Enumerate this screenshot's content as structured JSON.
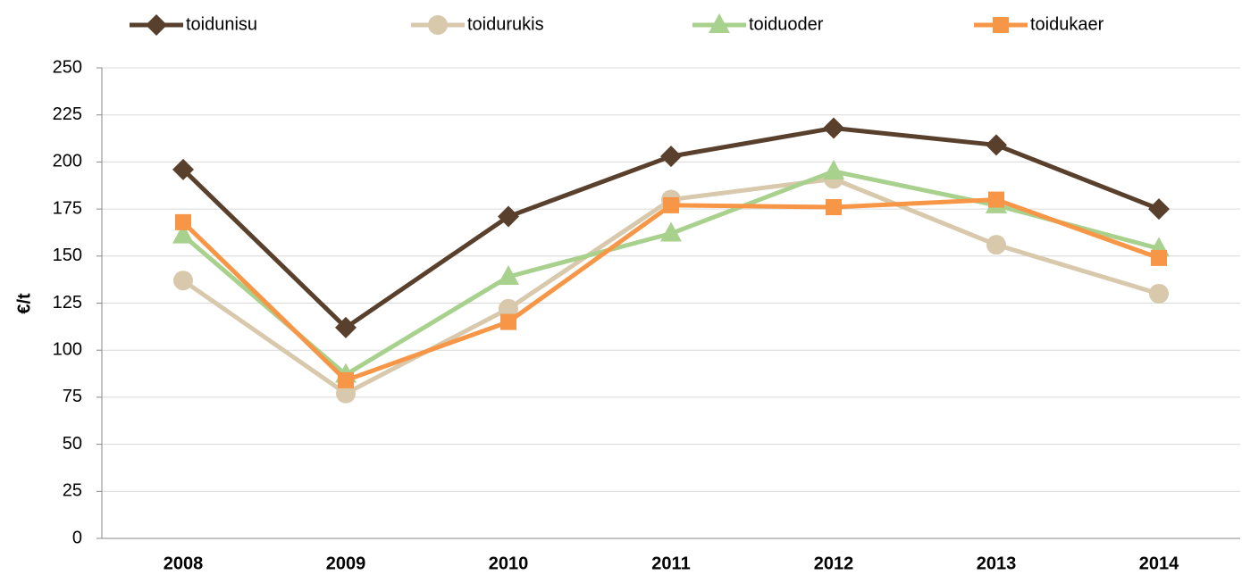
{
  "chart_data": {
    "type": "line",
    "categories": [
      "2008",
      "2009",
      "2010",
      "2011",
      "2012",
      "2013",
      "2014"
    ],
    "y_label": "€/t",
    "ylim": [
      0,
      250
    ],
    "yticks": [
      0,
      25,
      50,
      75,
      100,
      125,
      150,
      175,
      200,
      225,
      250
    ],
    "grid": true,
    "legend": "top",
    "series": [
      {
        "name": "toidunisu",
        "color": "#59402c",
        "marker": "diamond",
        "values": [
          196,
          112,
          171,
          203,
          218,
          209,
          175
        ]
      },
      {
        "name": "toidurukis",
        "color": "#d8c8ac",
        "marker": "circle",
        "values": [
          137,
          77,
          122,
          180,
          191,
          156,
          130
        ]
      },
      {
        "name": "toiduoder",
        "color": "#a9d18e",
        "marker": "triangle",
        "values": [
          161,
          87,
          139,
          162,
          195,
          177,
          154
        ]
      },
      {
        "name": "toidukaer",
        "color": "#f79646",
        "marker": "square",
        "values": [
          168,
          84,
          115,
          177,
          176,
          180,
          149
        ]
      }
    ]
  }
}
